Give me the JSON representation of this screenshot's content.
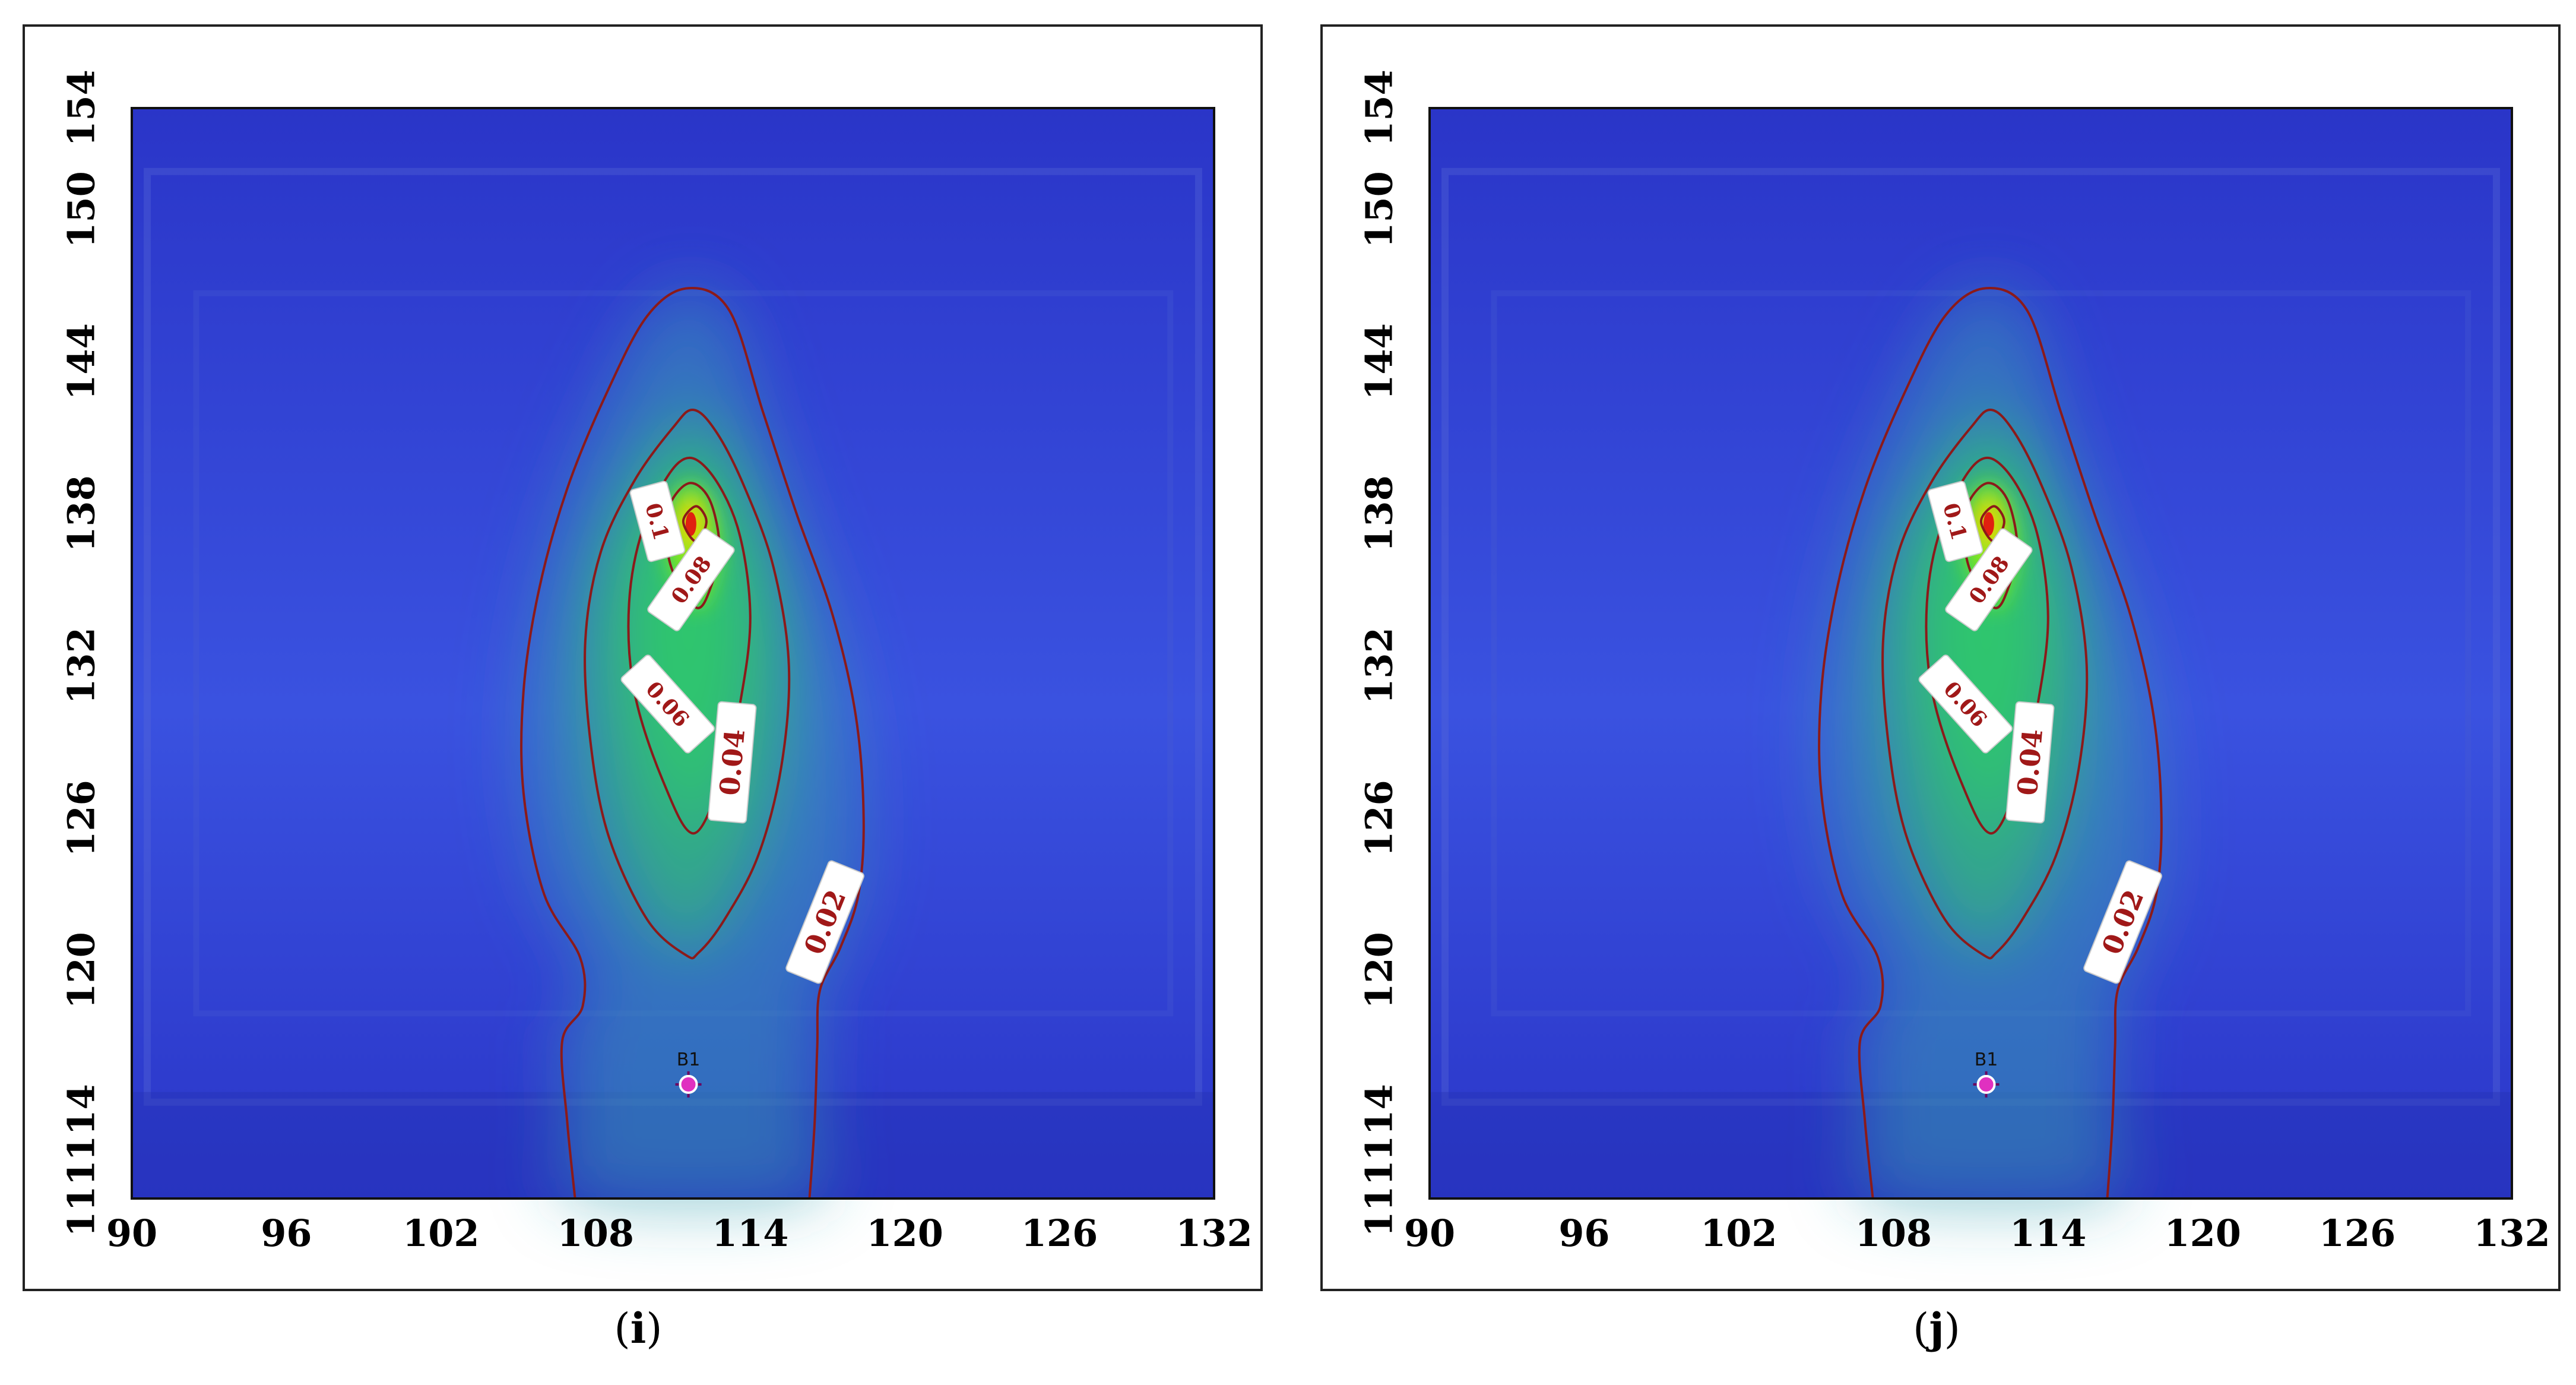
{
  "chart_data": [
    {
      "type": "heatmap",
      "caption": "i",
      "x_ticks": [
        "90",
        "96",
        "102",
        "108",
        "114",
        "120",
        "126",
        "132"
      ],
      "y_ticks": [
        "111",
        "114",
        "120",
        "126",
        "132",
        "138",
        "144",
        "150",
        "154"
      ],
      "xlim": [
        90,
        132
      ],
      "ylim": [
        111,
        154
      ],
      "colormap": [
        "#2a35c8",
        "#3a52e0",
        "#2fc86a",
        "#7bea1a",
        "#f0d000",
        "#e02010"
      ],
      "contour_color": "#8b1a1a",
      "peak": {
        "x": 111.7,
        "y": 137.6
      },
      "source": {
        "label": "B1",
        "x": 111.6,
        "y": 115.5
      },
      "contours": [
        {
          "level": 0.1,
          "label": "0.1",
          "label_pos": [
            110.4,
            137.7
          ],
          "label_angle": 75
        },
        {
          "level": 0.08,
          "label": "0.08",
          "label_pos": [
            111.7,
            135.4
          ],
          "label_angle": -55
        },
        {
          "level": 0.06,
          "label": "0.06",
          "label_pos": [
            110.8,
            130.5
          ],
          "label_angle": 48
        },
        {
          "level": 0.04,
          "label": "0.04",
          "label_pos": [
            113.3,
            128.2
          ],
          "label_angle": -85
        },
        {
          "level": 0.02,
          "label": "0.02",
          "label_pos": [
            116.9,
            121.9
          ],
          "label_angle": -68
        }
      ]
    },
    {
      "type": "heatmap",
      "caption": "j",
      "x_ticks": [
        "90",
        "96",
        "102",
        "108",
        "114",
        "120",
        "126",
        "132"
      ],
      "y_ticks": [
        "111",
        "114",
        "120",
        "126",
        "132",
        "138",
        "144",
        "150",
        "154"
      ],
      "xlim": [
        90,
        132
      ],
      "ylim": [
        111,
        154
      ],
      "colormap": [
        "#2a35c8",
        "#3a52e0",
        "#2fc86a",
        "#7bea1a",
        "#f0d000",
        "#e02010"
      ],
      "contour_color": "#8b1a1a",
      "peak": {
        "x": 111.7,
        "y": 137.6
      },
      "source": {
        "label": "B1",
        "x": 111.6,
        "y": 115.5
      },
      "contours": [
        {
          "level": 0.1,
          "label": "0.1",
          "label_pos": [
            110.4,
            137.7
          ],
          "label_angle": 75
        },
        {
          "level": 0.08,
          "label": "0.08",
          "label_pos": [
            111.7,
            135.4
          ],
          "label_angle": -55
        },
        {
          "level": 0.06,
          "label": "0.06",
          "label_pos": [
            110.8,
            130.5
          ],
          "label_angle": 48
        },
        {
          "level": 0.04,
          "label": "0.04",
          "label_pos": [
            113.3,
            128.2
          ],
          "label_angle": -85
        },
        {
          "level": 0.02,
          "label": "0.02",
          "label_pos": [
            116.9,
            121.9
          ],
          "label_angle": -68
        }
      ]
    }
  ]
}
